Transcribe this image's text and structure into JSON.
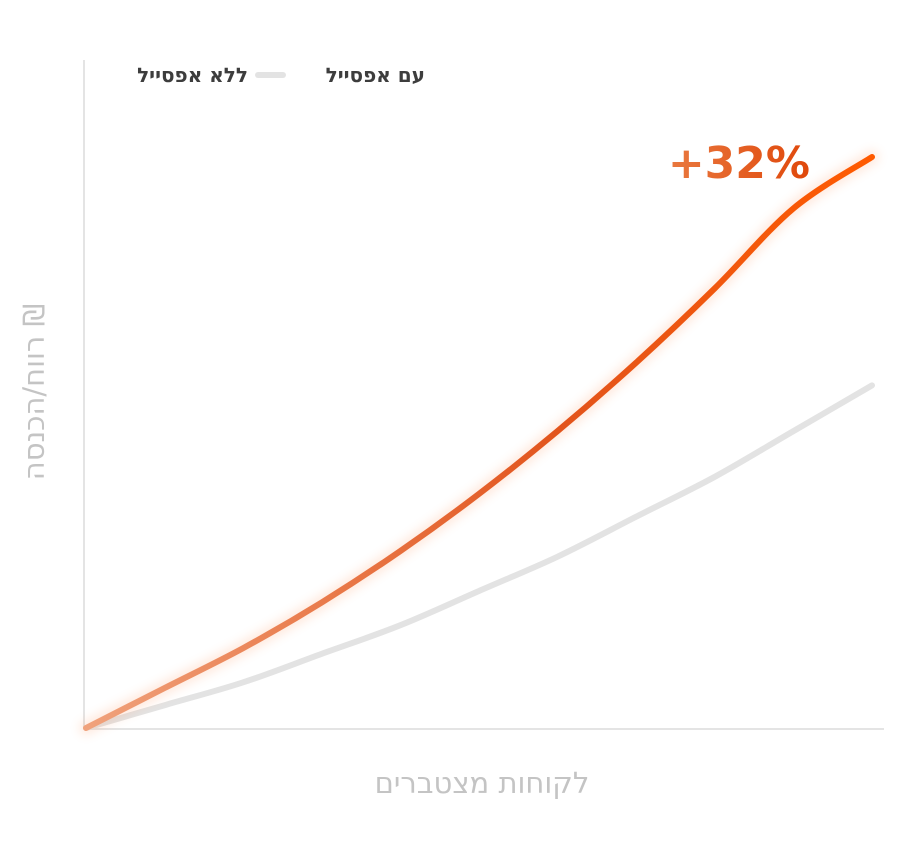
{
  "chart_data": {
    "type": "line",
    "title": "",
    "xlabel": "לקוחות מצטברים",
    "ylabel": "רווח/הכנסה ₪",
    "xlim": [
      0,
      1
    ],
    "ylim": [
      0,
      1
    ],
    "x_ticks": [],
    "y_ticks": [],
    "grid": false,
    "legend_position": "top-left",
    "series": [
      {
        "name": "עם אפסייל",
        "color": "#ff5500",
        "x": [
          0,
          0.1,
          0.2,
          0.3,
          0.4,
          0.5,
          0.6,
          0.7,
          0.8,
          0.9,
          1.0
        ],
        "y": [
          0,
          0.07,
          0.14,
          0.22,
          0.31,
          0.41,
          0.52,
          0.64,
          0.77,
          0.91,
          1.0
        ]
      },
      {
        "name": "ללא אפסייל",
        "color": "#e3e3e3",
        "x": [
          0,
          0.1,
          0.2,
          0.3,
          0.4,
          0.5,
          0.6,
          0.7,
          0.8,
          0.9,
          1.0
        ],
        "y": [
          0,
          0.04,
          0.08,
          0.13,
          0.18,
          0.24,
          0.3,
          0.37,
          0.44,
          0.52,
          0.6
        ]
      }
    ],
    "annotations": [
      {
        "text": "+32%",
        "color": "#e8500f"
      }
    ]
  }
}
